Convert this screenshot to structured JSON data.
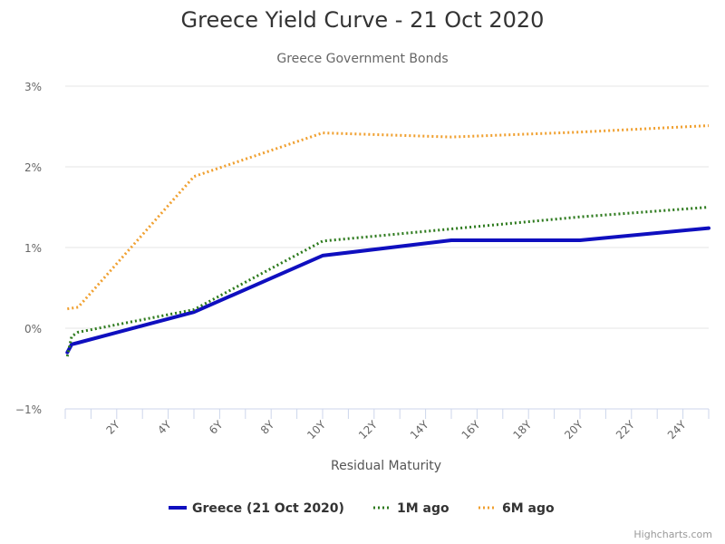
{
  "chart_data": {
    "type": "line",
    "title": "Greece Yield Curve - 21 Oct 2020",
    "subtitle": "Greece Government Bonds",
    "xlabel": "Residual Maturity",
    "ylabel": "",
    "xlim": [
      0,
      25
    ],
    "ylim": [
      -1,
      3
    ],
    "x_ticks": [
      2,
      4,
      6,
      8,
      10,
      12,
      14,
      16,
      18,
      20,
      22,
      24
    ],
    "x_tick_labels": [
      "2Y",
      "4Y",
      "6Y",
      "8Y",
      "10Y",
      "12Y",
      "14Y",
      "16Y",
      "18Y",
      "20Y",
      "22Y",
      "24Y"
    ],
    "y_ticks": [
      -1,
      0,
      1,
      2,
      3
    ],
    "y_tick_labels": [
      "−1%",
      "0%",
      "1%",
      "2%",
      "3%"
    ],
    "grid": "horizontal",
    "legend": "bottom-center",
    "series": [
      {
        "name": "Greece (21 Oct 2020)",
        "color": "#0f0fbf",
        "style": "solid",
        "points": [
          [
            0.08,
            -0.3
          ],
          [
            0.25,
            -0.2
          ],
          [
            0.5,
            -0.18
          ],
          [
            5,
            0.2
          ],
          [
            10,
            0.9
          ],
          [
            15,
            1.09
          ],
          [
            20,
            1.09
          ],
          [
            25,
            1.24
          ]
        ]
      },
      {
        "name": "1M ago",
        "color": "#2d7a1d",
        "style": "dotted",
        "points": [
          [
            0.08,
            -0.35
          ],
          [
            0.25,
            -0.1
          ],
          [
            0.5,
            -0.05
          ],
          [
            5,
            0.23
          ],
          [
            10,
            1.08
          ],
          [
            15,
            1.23
          ],
          [
            20,
            1.38
          ],
          [
            25,
            1.5
          ]
        ]
      },
      {
        "name": "6M ago",
        "color": "#f0a030",
        "style": "dotted",
        "points": [
          [
            0.08,
            0.24
          ],
          [
            0.5,
            0.26
          ],
          [
            5,
            1.88
          ],
          [
            10,
            2.42
          ],
          [
            15,
            2.37
          ],
          [
            20,
            2.43
          ],
          [
            25,
            2.51
          ]
        ]
      }
    ]
  },
  "credits": "Highcharts.com"
}
